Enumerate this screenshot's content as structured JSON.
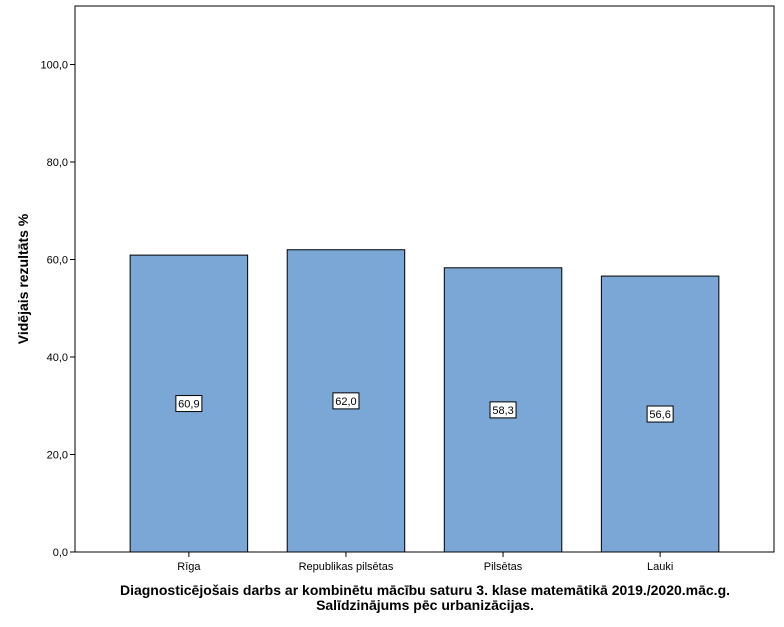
{
  "chart_data": {
    "type": "bar",
    "categories": [
      "Rīga",
      "Republikas pilsētas",
      "Pilsētas",
      "Lauki"
    ],
    "values": [
      60.9,
      62.0,
      58.3,
      56.6
    ],
    "data_labels": [
      "60,9",
      "62,0",
      "58,3",
      "56,6"
    ],
    "ylabel": "Vidējais rezultāts %",
    "xlabel_line1": "Diagnosticējošais darbs ar kombinētu mācību saturu 3. klase matemātikā 2019./2020.māc.g.",
    "xlabel_line2": "Salīdzinājums pēc urbanizācijas.",
    "ylim": [
      0,
      112
    ],
    "yticks": [
      0,
      20,
      40,
      60,
      80,
      100
    ],
    "ytick_labels": [
      "0,0",
      "20,0",
      "40,0",
      "60,0",
      "80,0",
      "100,0"
    ],
    "grid": false,
    "legend": "none",
    "bar_color": "#7ba7d7"
  }
}
